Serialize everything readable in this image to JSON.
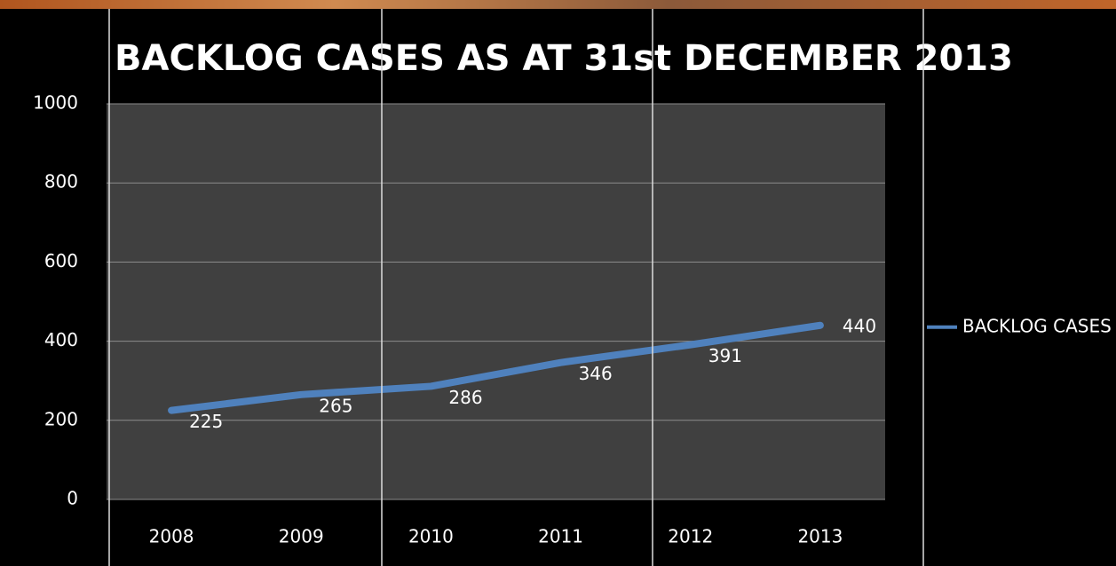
{
  "chart_data": {
    "type": "line",
    "title": "BACKLOG CASES AS AT 31st DECEMBER 2013",
    "categories": [
      "2008",
      "2009",
      "2010",
      "2011",
      "2012",
      "2013"
    ],
    "series": [
      {
        "name": "BACKLOG CASES",
        "color": "#4f81bd",
        "values": [
          225,
          265,
          286,
          346,
          391,
          440
        ]
      }
    ],
    "ylim": [
      0,
      1000
    ],
    "yticks": [
      0,
      200,
      400,
      600,
      800,
      1000
    ],
    "grid": true,
    "legend": "right"
  }
}
